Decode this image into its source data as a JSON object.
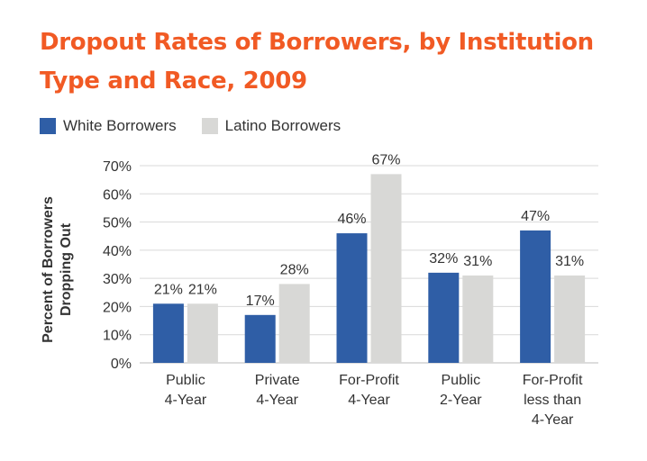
{
  "colors": {
    "title": "#f15a24",
    "white_series": "#2f5ea6",
    "latino_series": "#d8d8d6",
    "text": "#333333",
    "grid": "#d9d9d9"
  },
  "chart_data": {
    "type": "bar",
    "title": "Dropout Rates of Borrowers, by Institution Type and Race, 2009",
    "ylabel": "Percent of Borrowers Dropping Out",
    "xlabel": "",
    "categories": [
      [
        "Public",
        "4-Year"
      ],
      [
        "Private",
        "4-Year"
      ],
      [
        "For-Profit",
        "4-Year"
      ],
      [
        "Public",
        "2-Year"
      ],
      [
        "For-Profit",
        "less than",
        "4-Year"
      ]
    ],
    "series": [
      {
        "name": "White Borrowers",
        "values": [
          21,
          17,
          46,
          32,
          47
        ],
        "labels": [
          "21%",
          "17%",
          "46%",
          "32%",
          "47%"
        ]
      },
      {
        "name": "Latino Borrowers",
        "values": [
          21,
          28,
          67,
          31,
          31
        ],
        "labels": [
          "21%",
          "28%",
          "67%",
          "31%",
          "31%"
        ]
      }
    ],
    "ylim": [
      0,
      70
    ],
    "yticks": [
      0,
      10,
      20,
      30,
      40,
      50,
      60,
      70
    ],
    "ytick_labels": [
      "0%",
      "10%",
      "20%",
      "30%",
      "40%",
      "50%",
      "60%",
      "70%"
    ],
    "grid": true,
    "legend_position": "top-left"
  }
}
